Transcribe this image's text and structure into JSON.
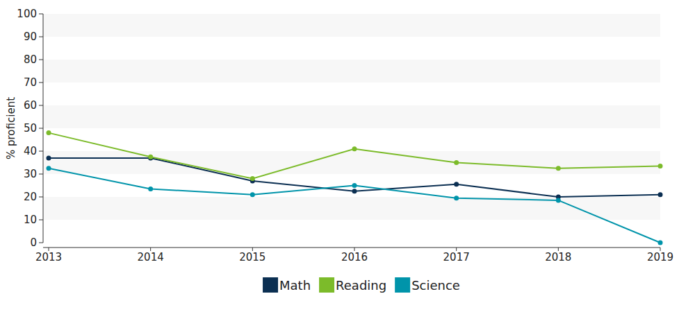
{
  "chart_data": {
    "type": "line",
    "y_label": "% proficient",
    "categories": [
      "2013",
      "2014",
      "2015",
      "2016",
      "2017",
      "2018",
      "2019"
    ],
    "series": [
      {
        "name": "Math",
        "color": "#0b2f52",
        "values": [
          37,
          37,
          27,
          22.5,
          25.5,
          20,
          21
        ]
      },
      {
        "name": "Reading",
        "color": "#7cbb2a",
        "values": [
          48,
          37.5,
          28,
          41,
          35,
          32.5,
          33.5
        ]
      },
      {
        "name": "Science",
        "color": "#0094aa",
        "values": [
          32.5,
          23.5,
          21,
          25,
          19.5,
          18.5,
          0
        ]
      }
    ],
    "ylim": [
      0,
      100
    ],
    "yticks": [
      0,
      10,
      20,
      30,
      40,
      50,
      60,
      70,
      80,
      90,
      100
    ],
    "grid": true,
    "marker": "circle",
    "legend": "bottom"
  }
}
